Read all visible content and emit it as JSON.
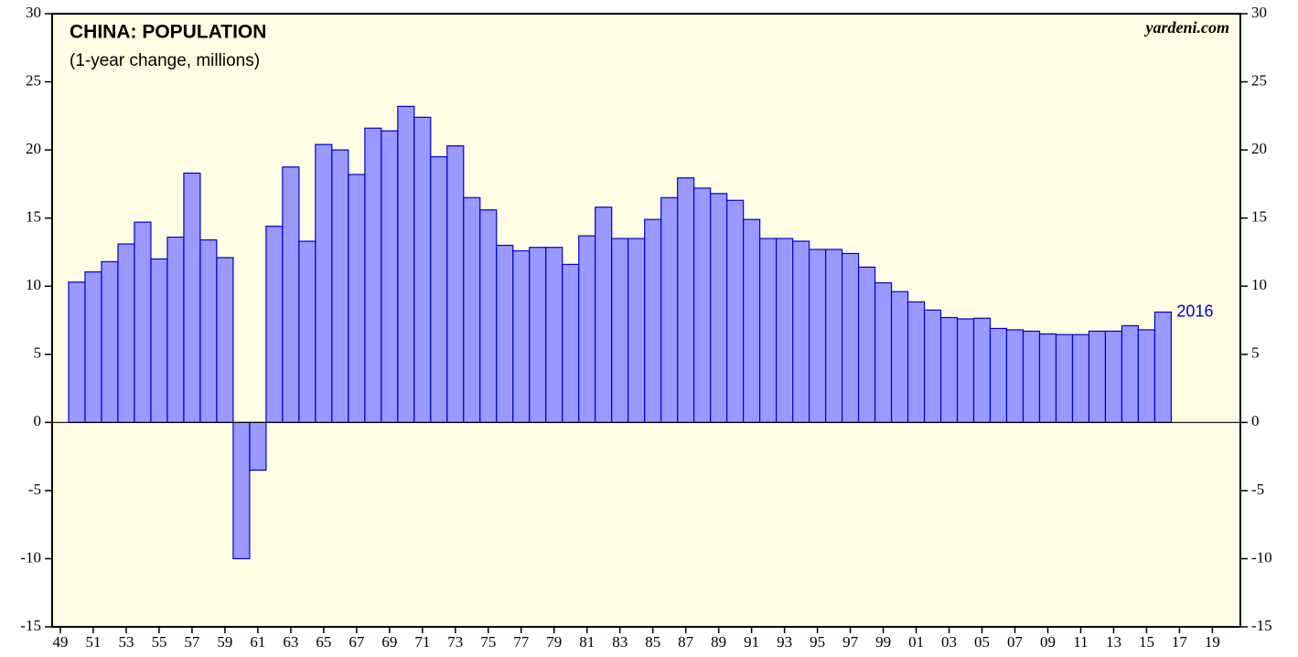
{
  "chart_data": {
    "type": "bar",
    "title": "CHINA: POPULATION",
    "subtitle": "(1-year change, millions)",
    "source": "yardeni.com",
    "annotation": "2016",
    "color": "#9999ff",
    "edge_color": "#0000cc",
    "x": [
      1950,
      1951,
      1952,
      1953,
      1954,
      1955,
      1956,
      1957,
      1958,
      1959,
      1960,
      1961,
      1962,
      1963,
      1964,
      1965,
      1966,
      1967,
      1968,
      1969,
      1970,
      1971,
      1972,
      1973,
      1974,
      1975,
      1976,
      1977,
      1978,
      1979,
      1980,
      1981,
      1982,
      1983,
      1984,
      1985,
      1986,
      1987,
      1988,
      1989,
      1990,
      1991,
      1992,
      1993,
      1994,
      1995,
      1996,
      1997,
      1998,
      1999,
      2000,
      2001,
      2002,
      2003,
      2004,
      2005,
      2006,
      2007,
      2008,
      2009,
      2010,
      2011,
      2012,
      2013,
      2014,
      2015,
      2016
    ],
    "values": [
      10.3,
      11.05,
      11.8,
      13.1,
      14.7,
      12.0,
      13.6,
      18.3,
      13.4,
      12.1,
      -10.0,
      -3.5,
      14.4,
      18.75,
      13.3,
      20.4,
      20.0,
      18.2,
      21.6,
      21.4,
      23.2,
      22.4,
      19.5,
      20.3,
      16.5,
      15.6,
      13.0,
      12.6,
      12.85,
      12.85,
      11.6,
      13.7,
      15.8,
      13.5,
      13.5,
      14.9,
      16.5,
      17.95,
      17.2,
      16.8,
      16.3,
      14.9,
      13.5,
      13.5,
      13.3,
      12.7,
      12.7,
      12.4,
      11.4,
      10.25,
      9.6,
      8.85,
      8.25,
      7.7,
      7.6,
      7.65,
      6.9,
      6.8,
      6.7,
      6.5,
      6.45,
      6.45,
      6.7,
      6.7,
      7.1,
      6.8,
      8.1
    ],
    "xlim": [
      1948.5,
      2020.7
    ],
    "xticks": [
      {
        "value": 1949,
        "label": "49"
      },
      {
        "value": 1951,
        "label": "51"
      },
      {
        "value": 1953,
        "label": "53"
      },
      {
        "value": 1955,
        "label": "55"
      },
      {
        "value": 1957,
        "label": "57"
      },
      {
        "value": 1959,
        "label": "59"
      },
      {
        "value": 1961,
        "label": "61"
      },
      {
        "value": 1963,
        "label": "63"
      },
      {
        "value": 1965,
        "label": "65"
      },
      {
        "value": 1967,
        "label": "67"
      },
      {
        "value": 1969,
        "label": "69"
      },
      {
        "value": 1971,
        "label": "71"
      },
      {
        "value": 1973,
        "label": "73"
      },
      {
        "value": 1975,
        "label": "75"
      },
      {
        "value": 1977,
        "label": "77"
      },
      {
        "value": 1979,
        "label": "79"
      },
      {
        "value": 1981,
        "label": "81"
      },
      {
        "value": 1983,
        "label": "83"
      },
      {
        "value": 1985,
        "label": "85"
      },
      {
        "value": 1987,
        "label": "87"
      },
      {
        "value": 1989,
        "label": "89"
      },
      {
        "value": 1991,
        "label": "91"
      },
      {
        "value": 1993,
        "label": "93"
      },
      {
        "value": 1995,
        "label": "95"
      },
      {
        "value": 1997,
        "label": "97"
      },
      {
        "value": 1999,
        "label": "99"
      },
      {
        "value": 2001,
        "label": "01"
      },
      {
        "value": 2003,
        "label": "03"
      },
      {
        "value": 2005,
        "label": "05"
      },
      {
        "value": 2007,
        "label": "07"
      },
      {
        "value": 2009,
        "label": "09"
      },
      {
        "value": 2011,
        "label": "11"
      },
      {
        "value": 2013,
        "label": "13"
      },
      {
        "value": 2015,
        "label": "15"
      },
      {
        "value": 2017,
        "label": "17"
      },
      {
        "value": 2019,
        "label": "19"
      }
    ],
    "ylim": [
      -15,
      30
    ],
    "yticks": [
      -15,
      -10,
      -5,
      0,
      5,
      10,
      15,
      20,
      25,
      30
    ]
  }
}
